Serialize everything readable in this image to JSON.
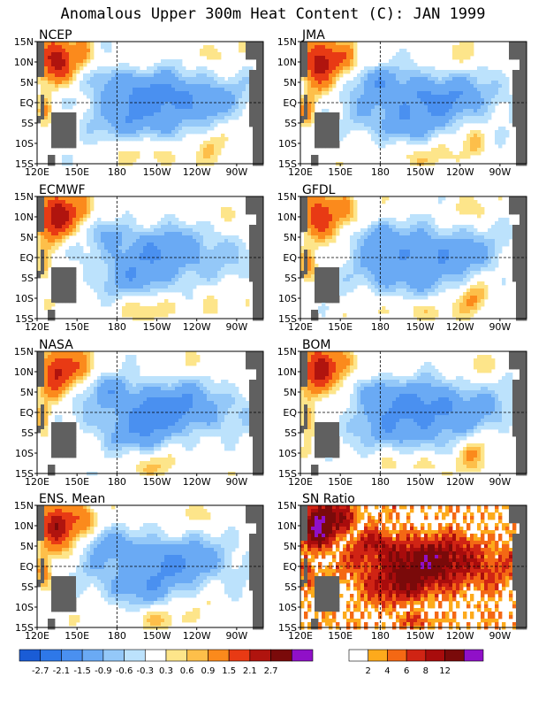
{
  "title": "Anomalous Upper 300m Heat Content (C): JAN 1999",
  "chart_data": [
    {
      "type": "heatmap",
      "title": "NCEP"
    },
    {
      "type": "heatmap",
      "title": "JMA"
    },
    {
      "type": "heatmap",
      "title": "ECMWF"
    },
    {
      "type": "heatmap",
      "title": "GFDL"
    },
    {
      "type": "heatmap",
      "title": "NASA"
    },
    {
      "type": "heatmap",
      "title": "BOM"
    },
    {
      "type": "heatmap",
      "title": "ENS. Mean"
    },
    {
      "type": "heatmap",
      "title": "SN Ratio"
    }
  ],
  "axes": {
    "x_ticks": [
      "120E",
      "150E",
      "180",
      "150W",
      "120W",
      "90W"
    ],
    "x_values": [
      120,
      150,
      180,
      210,
      240,
      270
    ],
    "y_ticks": [
      "15N",
      "10N",
      "5N",
      "EQ",
      "5S",
      "10S",
      "15S"
    ],
    "y_values": [
      15,
      10,
      5,
      0,
      -5,
      -10,
      -15
    ],
    "xlim": [
      120,
      290
    ],
    "ylim": [
      -15,
      15
    ]
  },
  "colorbars": [
    {
      "name": "anomaly",
      "labels": [
        "-2.7",
        "-2.1",
        "-1.5",
        "-0.9",
        "-0.6",
        "-0.3",
        "0.3",
        "0.6",
        "0.9",
        "1.5",
        "2.1",
        "2.7"
      ],
      "colors": [
        "#1a5cd6",
        "#2e78e8",
        "#4a90f0",
        "#6aaaf4",
        "#94c8f8",
        "#bce2fc",
        "#ffffff",
        "#fde58a",
        "#fdbf4a",
        "#fb8a1c",
        "#e83a14",
        "#b0140e",
        "#7a0a0a",
        "#9010c8"
      ]
    },
    {
      "name": "sn-ratio",
      "labels": [
        "2",
        "4",
        "6",
        "8",
        "12"
      ],
      "colors": [
        "#ffffff",
        "#fdaa1c",
        "#f46814",
        "#d02414",
        "#a80c0c",
        "#7a0a0a",
        "#9010c8"
      ]
    }
  ],
  "colors": {
    "land": "#606060",
    "background": "#ffffff"
  }
}
